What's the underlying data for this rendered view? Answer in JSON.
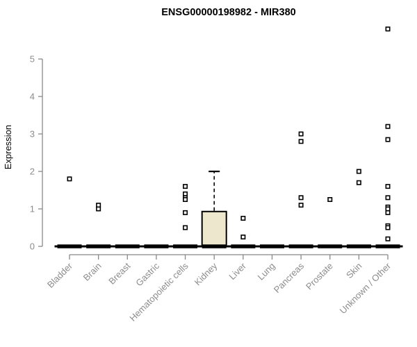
{
  "chart_data": {
    "type": "boxplot",
    "title": "ENSG00000198982 - MIR380",
    "ylabel": "Expression",
    "xlabel": "",
    "ylim": [
      0,
      5
    ],
    "yticks": [
      0,
      1,
      2,
      3,
      4,
      5
    ],
    "grid": false,
    "legend": "none",
    "categories": [
      "Bladder",
      "Brain",
      "Breast",
      "Gastric",
      "Hematopoietic cells",
      "Kidney",
      "Liver",
      "Lung",
      "Pancreas",
      "Prostate",
      "Skin",
      "Unknown / Other"
    ],
    "boxes": [
      {
        "category": "Bladder",
        "q1": 0,
        "median": 0,
        "q3": 0,
        "whisker_low": 0,
        "whisker_high": 0,
        "outliers": [
          1.8
        ]
      },
      {
        "category": "Brain",
        "q1": 0,
        "median": 0,
        "q3": 0,
        "whisker_low": 0,
        "whisker_high": 0,
        "outliers": [
          1.1,
          1.0
        ]
      },
      {
        "category": "Breast",
        "q1": 0,
        "median": 0,
        "q3": 0,
        "whisker_low": 0,
        "whisker_high": 0,
        "outliers": []
      },
      {
        "category": "Gastric",
        "q1": 0,
        "median": 0,
        "q3": 0,
        "whisker_low": 0,
        "whisker_high": 0,
        "outliers": []
      },
      {
        "category": "Hematopoietic cells",
        "q1": 0,
        "median": 0,
        "q3": 0,
        "whisker_low": 0,
        "whisker_high": 0,
        "outliers": [
          1.6,
          1.4,
          1.3,
          1.25,
          0.9,
          0.5
        ]
      },
      {
        "category": "Kidney",
        "q1": 0,
        "median": 0,
        "q3": 0.93,
        "whisker_low": 0,
        "whisker_high": 2.0,
        "outliers": []
      },
      {
        "category": "Liver",
        "q1": 0,
        "median": 0,
        "q3": 0,
        "whisker_low": 0,
        "whisker_high": 0,
        "outliers": [
          0.75,
          0.25
        ]
      },
      {
        "category": "Lung",
        "q1": 0,
        "median": 0,
        "q3": 0,
        "whisker_low": 0,
        "whisker_high": 0,
        "outliers": []
      },
      {
        "category": "Pancreas",
        "q1": 0,
        "median": 0,
        "q3": 0,
        "whisker_low": 0,
        "whisker_high": 0,
        "outliers": [
          3.0,
          2.8,
          1.3,
          1.1
        ]
      },
      {
        "category": "Prostate",
        "q1": 0,
        "median": 0,
        "q3": 0,
        "whisker_low": 0,
        "whisker_high": 0,
        "outliers": [
          1.25
        ]
      },
      {
        "category": "Skin",
        "q1": 0,
        "median": 0,
        "q3": 0,
        "whisker_low": 0,
        "whisker_high": 0,
        "outliers": [
          2.0,
          1.7
        ]
      },
      {
        "category": "Unknown / Other",
        "q1": 0,
        "median": 0,
        "q3": 0,
        "whisker_low": 0,
        "whisker_high": 0,
        "outliers": [
          5.8,
          3.2,
          2.85,
          1.6,
          1.3,
          1.05,
          1.0,
          0.9,
          0.55,
          0.5,
          0.2
        ]
      }
    ],
    "colors": {
      "background": "#ffffff",
      "title_text": "#000000",
      "axis_line": "#888888",
      "tick_text": "#8c8c8c",
      "box_fill": "#ECE7CD",
      "box_stroke": "#000000",
      "flat_bar": "#000000",
      "outlier_fill": "#ffffff",
      "outlier_stroke": "#000000"
    }
  }
}
